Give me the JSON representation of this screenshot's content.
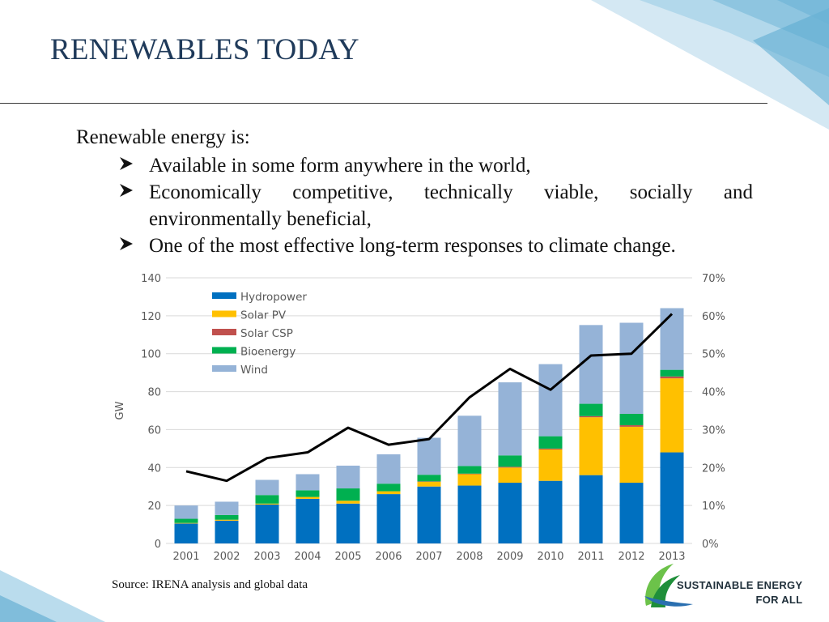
{
  "slide": {
    "title": "RENEWABLES TODAY",
    "intro": "Renewable energy is:",
    "bullets": [
      "Available in some form anywhere in the world,",
      "Economically competitive, technically viable, socially and environmentally beneficial,",
      "One of the most effective long-term responses to climate change."
    ],
    "source": "Source: IRENA analysis and global data"
  },
  "logo": {
    "line1": "SUSTAINABLE ENERGY",
    "line2": "FOR ALL",
    "icon": "swirl-leaf-icon"
  },
  "colors": {
    "title": "#1f3a5a",
    "hydropower": "#0070c0",
    "solar_pv": "#ffc000",
    "solar_csp": "#c0504d",
    "bioenergy": "#00b050",
    "wind": "#95b3d7",
    "line": "#000000"
  },
  "chart_data": {
    "type": "bar",
    "stacked": true,
    "categories": [
      "2001",
      "2002",
      "2003",
      "2004",
      "2005",
      "2006",
      "2007",
      "2008",
      "2009",
      "2010",
      "2011",
      "2012",
      "2013"
    ],
    "series": [
      {
        "name": "Hydropower",
        "values": [
          10.5,
          12,
          20.5,
          23.5,
          21,
          26,
          30,
          30.5,
          32,
          33,
          36,
          32,
          48
        ]
      },
      {
        "name": "Solar PV",
        "values": [
          0.3,
          0.5,
          0.5,
          1,
          1.5,
          1.5,
          2.5,
          6,
          8,
          16.5,
          30.5,
          29.5,
          39
        ]
      },
      {
        "name": "Solar CSP",
        "values": [
          0,
          0,
          0,
          0,
          0,
          0,
          0.2,
          0.3,
          0.4,
          0.5,
          0.6,
          0.8,
          1
        ]
      },
      {
        "name": "Bioenergy",
        "values": [
          2.2,
          2.5,
          4.5,
          3.5,
          6.5,
          4,
          3.5,
          4,
          6,
          6.5,
          6.5,
          6,
          3.5
        ]
      },
      {
        "name": "Wind",
        "values": [
          7,
          7,
          8,
          8.5,
          12,
          15.5,
          19.5,
          26.5,
          38.5,
          38,
          41.5,
          48,
          32.5
        ]
      }
    ],
    "line_series": {
      "values": [
        19,
        16.5,
        22.5,
        24,
        30.5,
        26,
        27.5,
        38.5,
        46,
        40.5,
        49.5,
        50,
        60.5
      ],
      "axis": "right"
    },
    "ylabel": "GW",
    "ylim": [
      0,
      140
    ],
    "yticks": [
      "0",
      "20",
      "40",
      "60",
      "80",
      "100",
      "120",
      "140"
    ],
    "y2lim": [
      0,
      70
    ],
    "y2ticks": [
      "0%",
      "10%",
      "20%",
      "30%",
      "40%",
      "50%",
      "60%",
      "70%"
    ],
    "grid": true,
    "legend": "top-left"
  }
}
